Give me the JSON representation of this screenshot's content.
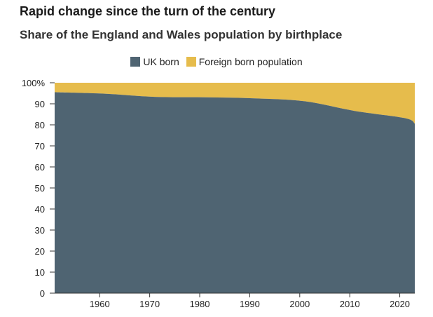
{
  "title": "Rapid change since the turn of the century",
  "subtitle": "Share of the England and Wales population by birthplace",
  "colors": {
    "uk_born": "#4f6472",
    "foreign_born": "#e6bc4c",
    "axis": "#333333"
  },
  "chart_data": {
    "type": "area",
    "stacked": true,
    "title": "Rapid change since the turn of the century",
    "subtitle": "Share of the England and Wales population by birthplace",
    "xlabel": "",
    "ylabel": "",
    "xlim": [
      1951,
      2023
    ],
    "ylim": [
      0,
      100
    ],
    "y_ticks": [
      "0",
      "10",
      "20",
      "30",
      "40",
      "50",
      "60",
      "70",
      "80",
      "90",
      "100%"
    ],
    "x_ticks": [
      "1960",
      "1970",
      "1980",
      "1990",
      "2000",
      "2010",
      "2020"
    ],
    "legend": [
      "UK born",
      "Foreign born population"
    ],
    "legend_position": "top-center",
    "grid": false,
    "x": [
      1951,
      1961,
      1971,
      1981,
      1991,
      2001,
      2011,
      2021,
      2023
    ],
    "series": [
      {
        "name": "UK born",
        "values": [
          95.5,
          94.8,
          93.3,
          93.1,
          92.6,
          91.2,
          86.6,
          83.2,
          80.6
        ]
      },
      {
        "name": "Foreign born population",
        "values": [
          4.5,
          5.2,
          6.7,
          6.9,
          7.4,
          8.8,
          13.4,
          16.8,
          19.4
        ]
      }
    ]
  }
}
